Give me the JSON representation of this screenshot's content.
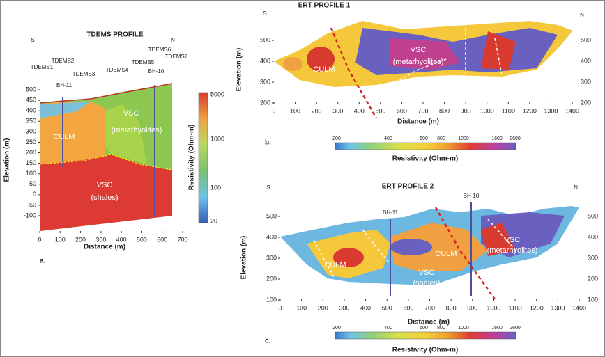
{
  "panels": [
    {
      "label": "a.",
      "title": "TDEMS PROFILE",
      "x_axis": {
        "label": "Distance (m)",
        "ticks": [
          0,
          100,
          200,
          300,
          400,
          500,
          600,
          700
        ]
      },
      "y_axis": {
        "label": "Elevation (m)",
        "ticks": [
          500,
          450,
          400,
          350,
          300,
          250,
          200,
          150,
          100,
          50,
          0,
          -50,
          -100
        ]
      },
      "colorbar": {
        "label": "Resistivity (Ohm-m)",
        "ticks": [
          5000,
          1000,
          100,
          20
        ]
      },
      "annotations": [
        "S",
        "N",
        "TDEMS1",
        "TDEMS2",
        "TDEMS3",
        "TDEMS4",
        "TDEMS5",
        "TDEMS6",
        "TDEMS7",
        "BH-11",
        "BH-10",
        "CULM",
        "VSC",
        "(metarhyolites)",
        "VSC",
        "(shales)"
      ]
    },
    {
      "label": "b.",
      "title": "ERT PROFILE 1",
      "x_axis": {
        "label": "Distance (m)",
        "ticks": [
          0,
          100,
          200,
          300,
          400,
          500,
          600,
          700,
          800,
          900,
          1000,
          1100,
          1200,
          1300,
          1400
        ]
      },
      "y_axis": {
        "label": "Elevation (m)",
        "ticks": [
          500,
          400,
          300,
          200
        ]
      },
      "colorbar": {
        "label": "Resistivity (Ohm-m)",
        "ticks": [
          200,
          400,
          600,
          800,
          1000,
          1600,
          2600
        ]
      },
      "annotations": [
        "S",
        "N",
        "CULM",
        "VSC",
        "(metarhyolites)"
      ]
    },
    {
      "label": "c.",
      "title": "ERT PROFILE 2",
      "x_axis": {
        "label": "Distance (m)",
        "ticks": [
          0,
          100,
          200,
          300,
          400,
          500,
          600,
          700,
          800,
          900,
          1000,
          1100,
          1200,
          1300,
          1400
        ]
      },
      "y_axis": {
        "label": "Elevation (m)",
        "ticks": [
          500,
          400,
          300,
          200,
          100
        ]
      },
      "colorbar": {
        "label": "Resistivity (Ohm-m)",
        "ticks": [
          200,
          400,
          600,
          800,
          1000,
          1600,
          2600
        ]
      },
      "annotations": [
        "S",
        "N",
        "BH-11",
        "BH-10",
        "CULM",
        "CULM",
        "VSC",
        "(shales)",
        "VSC",
        "(metarhyolites)"
      ]
    }
  ]
}
